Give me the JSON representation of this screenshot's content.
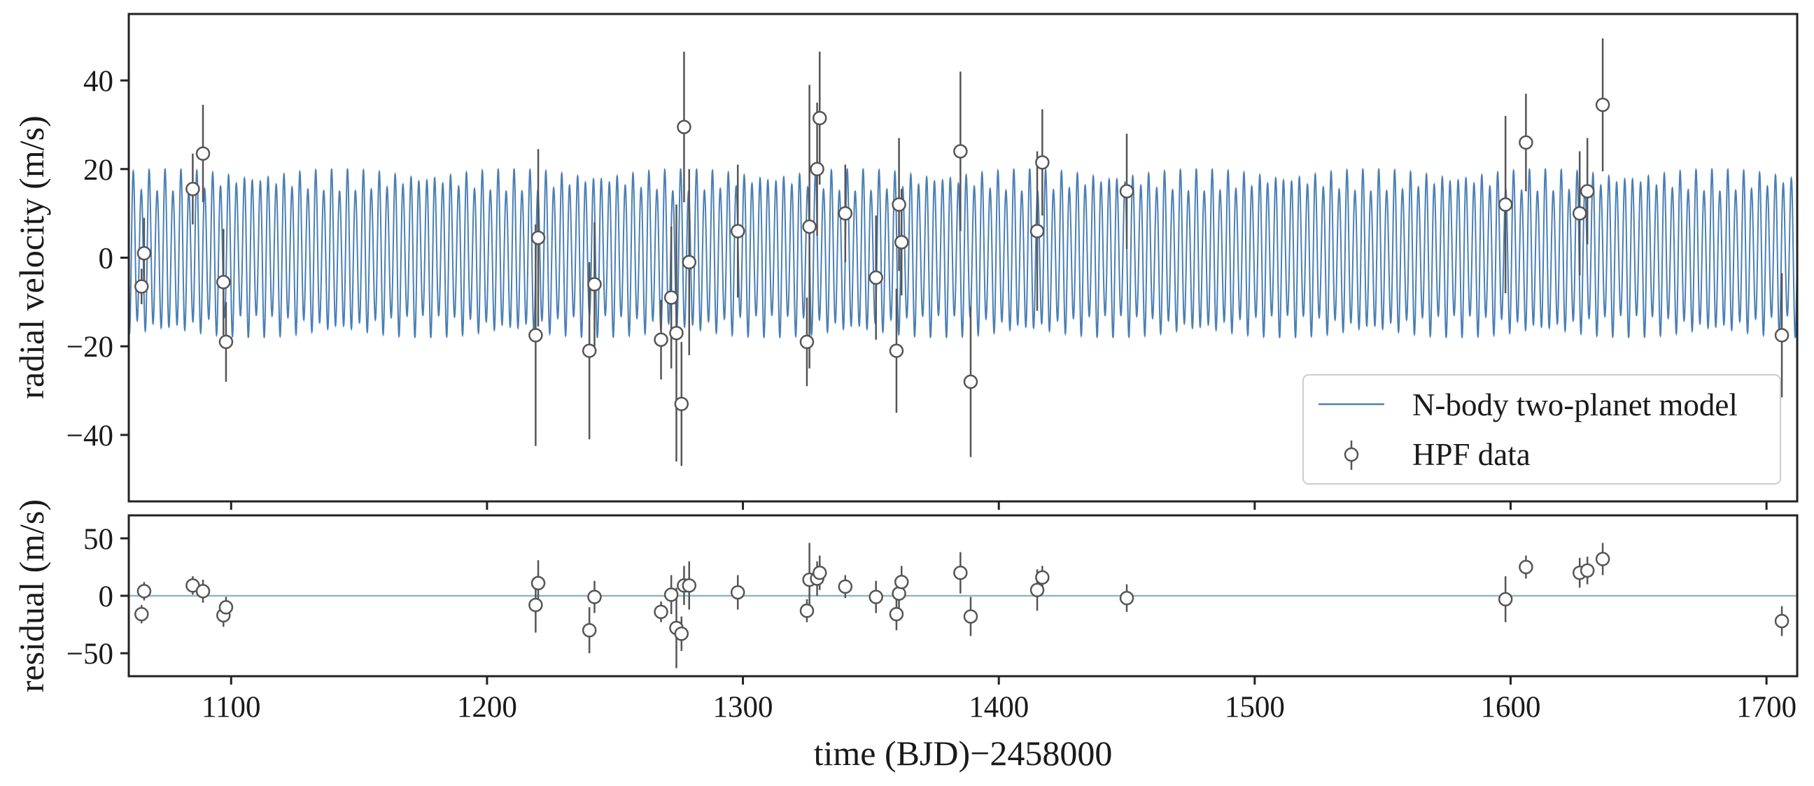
{
  "chart_data": [
    {
      "type": "line",
      "panel": "top",
      "ylabel": "radial velocity (m/s)",
      "xlim": [
        1060,
        1712
      ],
      "ylim": [
        -55,
        55
      ],
      "x_ticks": [
        1100,
        1200,
        1300,
        1400,
        1500,
        1600,
        1700
      ],
      "y_ticks": [
        40,
        20,
        0,
        -20,
        -40
      ],
      "y_tick_labels": [
        "40",
        "20",
        "0",
        "−20",
        "−40"
      ],
      "legend_position": "lower-right",
      "colors": {
        "model": "#4a7fb5",
        "data_edge": "#555555",
        "data_fill": "#ffffff",
        "errorbar": "#555555"
      },
      "series": [
        {
          "name": "N-body two-planet model",
          "kind": "model",
          "period_days": 3.1,
          "phase_offset_days": 0.8,
          "semi_amplitude_ms": 16.5,
          "offset_ms": 1.0,
          "modulation_ms": 2.5,
          "modulation_period_days": 6.5
        },
        {
          "name": "HPF data",
          "kind": "errorbar",
          "points": [
            {
              "x": 1065,
              "y": -6.5,
              "err": 4
            },
            {
              "x": 1066,
              "y": 1,
              "err": 8
            },
            {
              "x": 1085,
              "y": 15.5,
              "err": 8
            },
            {
              "x": 1089,
              "y": 23.5,
              "err": 11
            },
            {
              "x": 1097,
              "y": -5.5,
              "err": 12
            },
            {
              "x": 1098,
              "y": -19,
              "err": 9
            },
            {
              "x": 1219,
              "y": -17.5,
              "err": 25
            },
            {
              "x": 1220,
              "y": 4.5,
              "err": 20
            },
            {
              "x": 1240,
              "y": -21,
              "err": 20
            },
            {
              "x": 1242,
              "y": -6,
              "err": 14
            },
            {
              "x": 1268,
              "y": -18.5,
              "err": 9
            },
            {
              "x": 1272,
              "y": -9,
              "err": 16
            },
            {
              "x": 1274,
              "y": -17,
              "err": 29
            },
            {
              "x": 1276,
              "y": -33,
              "err": 14
            },
            {
              "x": 1277,
              "y": 29.5,
              "err": 17
            },
            {
              "x": 1279,
              "y": -1,
              "err": 21
            },
            {
              "x": 1298,
              "y": 6,
              "err": 15
            },
            {
              "x": 1325,
              "y": -19,
              "err": 10
            },
            {
              "x": 1326,
              "y": 7,
              "err": 32
            },
            {
              "x": 1329,
              "y": 20,
              "err": 15
            },
            {
              "x": 1330,
              "y": 31.5,
              "err": 15
            },
            {
              "x": 1340,
              "y": 10,
              "err": 11
            },
            {
              "x": 1352,
              "y": -4.5,
              "err": 14
            },
            {
              "x": 1360,
              "y": -21,
              "err": 14
            },
            {
              "x": 1361,
              "y": 12,
              "err": 15
            },
            {
              "x": 1362,
              "y": 3.5,
              "err": 12
            },
            {
              "x": 1385,
              "y": 24,
              "err": 18
            },
            {
              "x": 1389,
              "y": -28,
              "err": 17
            },
            {
              "x": 1415,
              "y": 6,
              "err": 18
            },
            {
              "x": 1417,
              "y": 21.5,
              "err": 12
            },
            {
              "x": 1450,
              "y": 15,
              "err": 13
            },
            {
              "x": 1598,
              "y": 12,
              "err": 20
            },
            {
              "x": 1606,
              "y": 26,
              "err": 11
            },
            {
              "x": 1627,
              "y": 10,
              "err": 14
            },
            {
              "x": 1630,
              "y": 15,
              "err": 12
            },
            {
              "x": 1636,
              "y": 34.5,
              "err": 15
            },
            {
              "x": 1706,
              "y": -17.5,
              "err": 14
            }
          ]
        }
      ]
    },
    {
      "type": "scatter",
      "panel": "bottom",
      "xlabel": "time (BJD)−2458000",
      "ylabel": "residual (m/s)",
      "xlim": [
        1060,
        1712
      ],
      "ylim": [
        -70,
        70
      ],
      "x_ticks": [
        1100,
        1200,
        1300,
        1400,
        1500,
        1600,
        1700
      ],
      "x_tick_labels": [
        "1100",
        "1200",
        "1300",
        "1400",
        "1500",
        "1600",
        "1700"
      ],
      "y_ticks": [
        50,
        0,
        -50
      ],
      "y_tick_labels": [
        "50",
        "0",
        "−50"
      ],
      "reference_line_y": 0,
      "colors": {
        "reference": "#8fb8c8",
        "data_edge": "#555555",
        "data_fill": "#ffffff",
        "errorbar": "#555555"
      },
      "series": [
        {
          "kind": "errorbar",
          "points": [
            {
              "x": 1065,
              "y": -16,
              "err": 8
            },
            {
              "x": 1066,
              "y": 4,
              "err": 8
            },
            {
              "x": 1085,
              "y": 9,
              "err": 8
            },
            {
              "x": 1089,
              "y": 4,
              "err": 10
            },
            {
              "x": 1097,
              "y": -17,
              "err": 10
            },
            {
              "x": 1098,
              "y": -10,
              "err": 9
            },
            {
              "x": 1219,
              "y": -8,
              "err": 24
            },
            {
              "x": 1220,
              "y": 11,
              "err": 20
            },
            {
              "x": 1240,
              "y": -30,
              "err": 20
            },
            {
              "x": 1242,
              "y": -1,
              "err": 14
            },
            {
              "x": 1268,
              "y": -14,
              "err": 9
            },
            {
              "x": 1272,
              "y": 1,
              "err": 17
            },
            {
              "x": 1274,
              "y": -28,
              "err": 35
            },
            {
              "x": 1276,
              "y": -33,
              "err": 15
            },
            {
              "x": 1277,
              "y": 9,
              "err": 17
            },
            {
              "x": 1279,
              "y": 9,
              "err": 21
            },
            {
              "x": 1298,
              "y": 3,
              "err": 15
            },
            {
              "x": 1325,
              "y": -13,
              "err": 10
            },
            {
              "x": 1326,
              "y": 14,
              "err": 32
            },
            {
              "x": 1329,
              "y": 15,
              "err": 15
            },
            {
              "x": 1330,
              "y": 20,
              "err": 15
            },
            {
              "x": 1340,
              "y": 8,
              "err": 10
            },
            {
              "x": 1352,
              "y": -1,
              "err": 14
            },
            {
              "x": 1360,
              "y": -16,
              "err": 14
            },
            {
              "x": 1361,
              "y": 2,
              "err": 15
            },
            {
              "x": 1362,
              "y": 12,
              "err": 14
            },
            {
              "x": 1385,
              "y": 20,
              "err": 18
            },
            {
              "x": 1389,
              "y": -18,
              "err": 17
            },
            {
              "x": 1415,
              "y": 5,
              "err": 18
            },
            {
              "x": 1417,
              "y": 16,
              "err": 10
            },
            {
              "x": 1450,
              "y": -2,
              "err": 12
            },
            {
              "x": 1598,
              "y": -3,
              "err": 20
            },
            {
              "x": 1606,
              "y": 25,
              "err": 10
            },
            {
              "x": 1627,
              "y": 20,
              "err": 13
            },
            {
              "x": 1630,
              "y": 22,
              "err": 12
            },
            {
              "x": 1636,
              "y": 32,
              "err": 14
            },
            {
              "x": 1706,
              "y": -22,
              "err": 13
            }
          ]
        }
      ]
    }
  ]
}
